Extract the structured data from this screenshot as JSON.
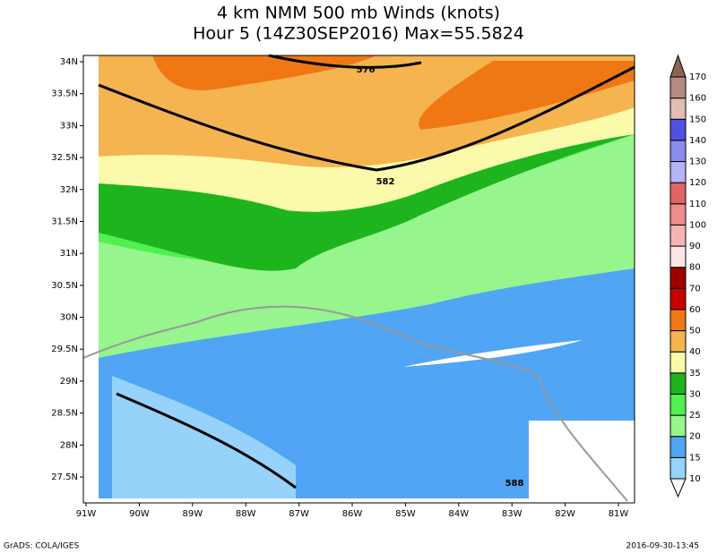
{
  "title": [
    "4 km NMM 500 mb Winds (knots)",
    "Hour 5 (14Z30SEP2016) Max=55.5824"
  ],
  "x_labels": [
    "91W",
    "90W",
    "89W",
    "88W",
    "87W",
    "86W",
    "85W",
    "84W",
    "83W",
    "82W",
    "81W"
  ],
  "y_labels": [
    "34N",
    "33.5N",
    "33N",
    "32.5N",
    "32N",
    "31.5N",
    "31N",
    "30.5N",
    "30N",
    "29.5N",
    "29N",
    "28.5N",
    "28N",
    "27.5N"
  ],
  "colorbar": {
    "labels": [
      "10",
      "15",
      "20",
      "25",
      "30",
      "35",
      "40",
      "50",
      "60",
      "70",
      "80",
      "90",
      "100",
      "110",
      "120",
      "130",
      "140",
      "150",
      "160",
      "170"
    ],
    "colors": [
      "#ffffff",
      "#96d2fa",
      "#50a5f5",
      "#96f58c",
      "#50f050",
      "#1eb41e",
      "#fafaaa",
      "#f5b450",
      "#f07814",
      "#c80000",
      "#a00000",
      "#ffe6e6",
      "#f5b4b4",
      "#f08c8c",
      "#e16464",
      "#b4b4fa",
      "#8c8cf0",
      "#5050e1",
      "#e1beb4",
      "#b48c82",
      "#8c6450"
    ]
  },
  "contour_labels": [
    "576",
    "582",
    "588"
  ],
  "footer": {
    "left": "GrADS: COLA/IGES",
    "right": "2016-09-30-13:45"
  }
}
